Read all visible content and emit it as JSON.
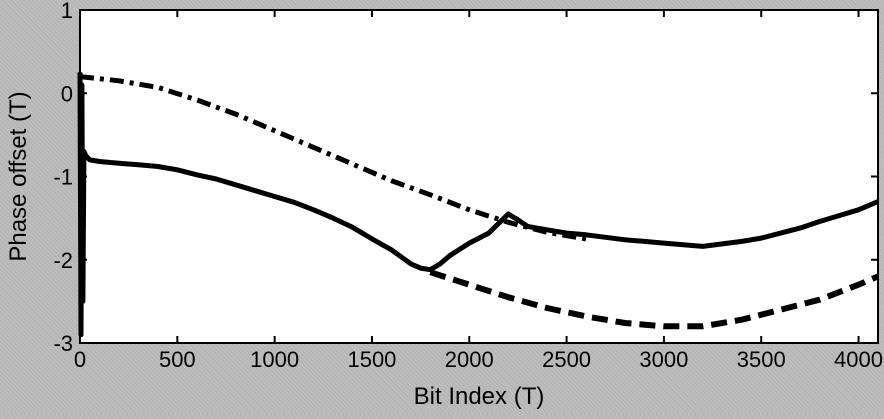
{
  "chart_data": {
    "type": "line",
    "xlabel": "Bit Index (T)",
    "ylabel": "Phase offset (T)",
    "xlim": [
      0,
      4100
    ],
    "ylim": [
      -3,
      1
    ],
    "xticks": [
      0,
      500,
      1000,
      1500,
      2000,
      2500,
      3000,
      3500,
      4000
    ],
    "yticks": [
      -3,
      -2,
      -1,
      0,
      1
    ],
    "grid": false,
    "series": [
      {
        "style": "solid",
        "color": "#000000",
        "x": [
          0,
          5,
          10,
          15,
          20,
          30,
          50,
          100,
          200,
          300,
          400,
          500,
          600,
          700,
          800,
          900,
          1000,
          1100,
          1200,
          1300,
          1400,
          1500,
          1600,
          1700,
          1750,
          1800,
          1850,
          1900,
          2000,
          2100,
          2200,
          2250,
          2300,
          2400,
          2500,
          2600,
          2700,
          2800,
          2900,
          3000,
          3100,
          3200,
          3300,
          3400,
          3500,
          3600,
          3700,
          3800,
          3900,
          4000,
          4100
        ],
        "y": [
          0.25,
          -2.9,
          0.1,
          -2.5,
          -0.7,
          -0.75,
          -0.8,
          -0.82,
          -0.84,
          -0.86,
          -0.88,
          -0.92,
          -0.98,
          -1.03,
          -1.1,
          -1.17,
          -1.24,
          -1.31,
          -1.4,
          -1.5,
          -1.61,
          -1.75,
          -1.88,
          -2.05,
          -2.1,
          -2.12,
          -2.05,
          -1.95,
          -1.8,
          -1.68,
          -1.45,
          -1.52,
          -1.6,
          -1.64,
          -1.68,
          -1.7,
          -1.73,
          -1.76,
          -1.78,
          -1.8,
          -1.82,
          -1.84,
          -1.81,
          -1.78,
          -1.74,
          -1.68,
          -1.62,
          -1.54,
          -1.47,
          -1.4,
          -1.3
        ]
      },
      {
        "style": "dashdot",
        "color": "#000000",
        "x": [
          0,
          200,
          400,
          600,
          800,
          1000,
          1200,
          1400,
          1600,
          1800,
          2000,
          2200,
          2400,
          2600
        ],
        "y": [
          0.2,
          0.15,
          0.07,
          -0.08,
          -0.25,
          -0.45,
          -0.65,
          -0.85,
          -1.05,
          -1.22,
          -1.4,
          -1.55,
          -1.67,
          -1.75
        ]
      },
      {
        "style": "dashed",
        "color": "#000000",
        "x": [
          1800,
          2000,
          2200,
          2400,
          2600,
          2800,
          3000,
          3200,
          3400,
          3600,
          3800,
          4000,
          4100
        ],
        "y": [
          -2.15,
          -2.3,
          -2.45,
          -2.58,
          -2.68,
          -2.76,
          -2.8,
          -2.8,
          -2.72,
          -2.6,
          -2.48,
          -2.3,
          -2.2
        ]
      }
    ]
  }
}
